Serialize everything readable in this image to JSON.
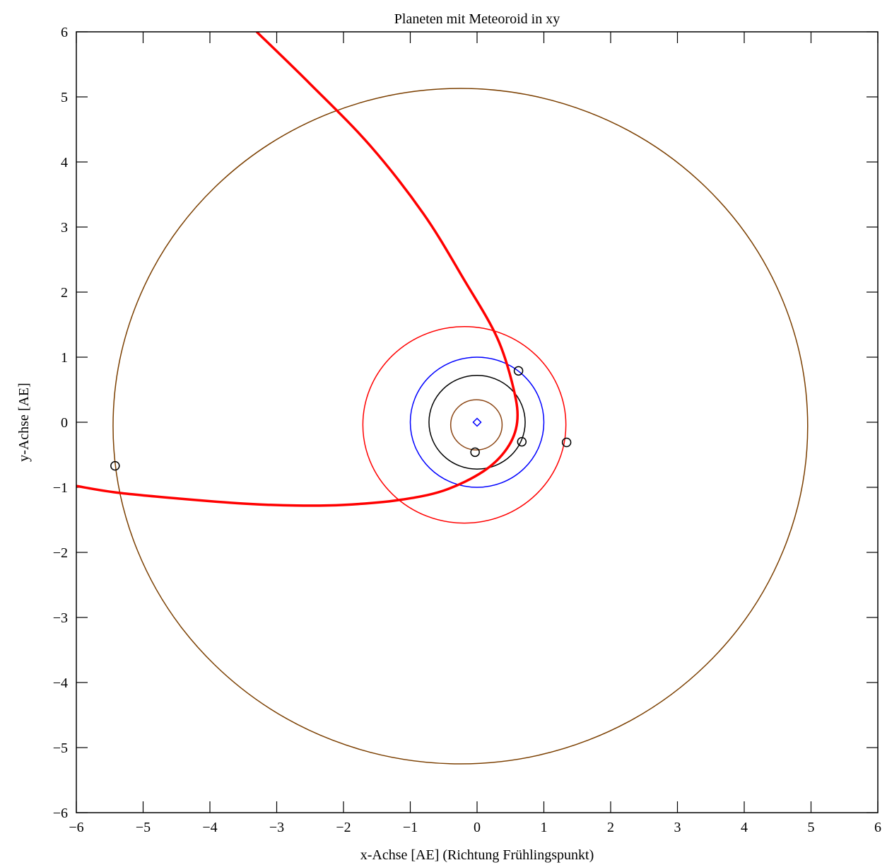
{
  "chart_data": {
    "type": "line",
    "title": "Planeten mit Meteoroid in xy",
    "xlabel": "x-Achse [AE] (Richtung Frühlingspunkt)",
    "ylabel": "y-Achse [AE]",
    "xlim": [
      -6,
      6
    ],
    "ylim": [
      -6,
      6
    ],
    "xticks": [
      -6,
      -5,
      -4,
      -3,
      -2,
      -1,
      0,
      1,
      2,
      3,
      4,
      5,
      6
    ],
    "yticks": [
      -6,
      -5,
      -4,
      -3,
      -2,
      -1,
      0,
      1,
      2,
      3,
      4,
      5,
      6
    ],
    "grid": false,
    "orbits": [
      {
        "color": "#8B4513",
        "cx": -0.01,
        "cy": -0.04,
        "rx": 0.385,
        "ry": 0.385
      },
      {
        "color": "#000000",
        "cx": 0.0,
        "cy": 0.0,
        "rx": 0.72,
        "ry": 0.72
      },
      {
        "color": "#0000ff",
        "cx": 0.0,
        "cy": 0.0,
        "rx": 1.0,
        "ry": 1.0
      },
      {
        "color": "#ff0000",
        "cx": -0.19,
        "cy": -0.04,
        "rx": 1.52,
        "ry": 1.51
      },
      {
        "color": "#7b3f00",
        "cx": -0.25,
        "cy": -0.06,
        "rx": 5.2,
        "ry": 5.19
      }
    ],
    "meteoroid_path": {
      "color": "#ff0000",
      "points": [
        [
          -3.3,
          6.0
        ],
        [
          -2.5,
          5.2
        ],
        [
          -1.6,
          4.25
        ],
        [
          -0.8,
          3.2
        ],
        [
          -0.2,
          2.2
        ],
        [
          0.3,
          1.3
        ],
        [
          0.55,
          0.5
        ],
        [
          0.6,
          0.0
        ],
        [
          0.45,
          -0.4
        ],
        [
          0.1,
          -0.75
        ],
        [
          -0.5,
          -1.05
        ],
        [
          -1.2,
          -1.2
        ],
        [
          -2.0,
          -1.27
        ],
        [
          -2.7,
          -1.28
        ],
        [
          -3.5,
          -1.25
        ],
        [
          -4.5,
          -1.17
        ],
        [
          -5.4,
          -1.08
        ],
        [
          -6.0,
          -0.98
        ]
      ]
    },
    "planet_positions": [
      [
        -0.03,
        -0.46
      ],
      [
        0.62,
        0.79
      ],
      [
        0.67,
        -0.3
      ],
      [
        1.34,
        -0.31
      ],
      [
        -5.42,
        -0.67
      ]
    ],
    "sun": {
      "x": 0.0,
      "y": 0.0,
      "color": "#0000ff"
    }
  }
}
